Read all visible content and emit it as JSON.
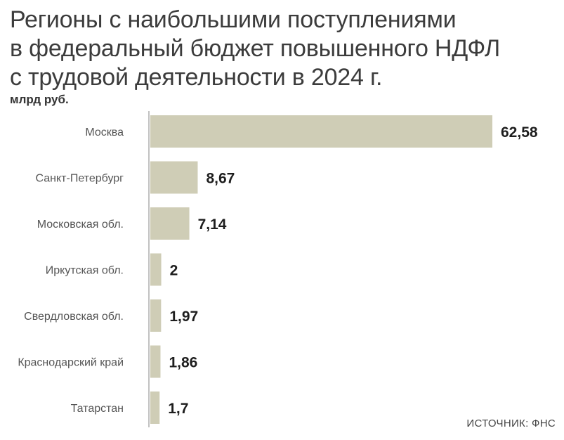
{
  "title_lines": [
    "Регионы с наибольшими поступлениями",
    "в федеральный бюджет повышенного НДФЛ",
    "с трудовой деятельности в 2024 г."
  ],
  "unit_label": "млрд руб.",
  "source": "ИСТОЧНИК: ФНС",
  "colors": {
    "bar": "#cfcdb6",
    "axis": "#9a9a9a",
    "label": "#555555",
    "value": "#1e1e1e"
  },
  "chart_data": {
    "type": "bar",
    "orientation": "horizontal",
    "categories": [
      "Москва",
      "Санкт-Петербург",
      "Московская обл.",
      "Иркутская обл.",
      "Свердловская обл.",
      "Краснодарский край",
      "Татарстан"
    ],
    "values": [
      62.58,
      8.67,
      7.14,
      2,
      1.97,
      1.86,
      1.7
    ],
    "value_labels": [
      "62,58",
      "8,67",
      "7,14",
      "2",
      "1,97",
      "1,86",
      "1,7"
    ],
    "xlim": [
      0,
      62.58
    ],
    "grid": false,
    "legend": "none"
  }
}
